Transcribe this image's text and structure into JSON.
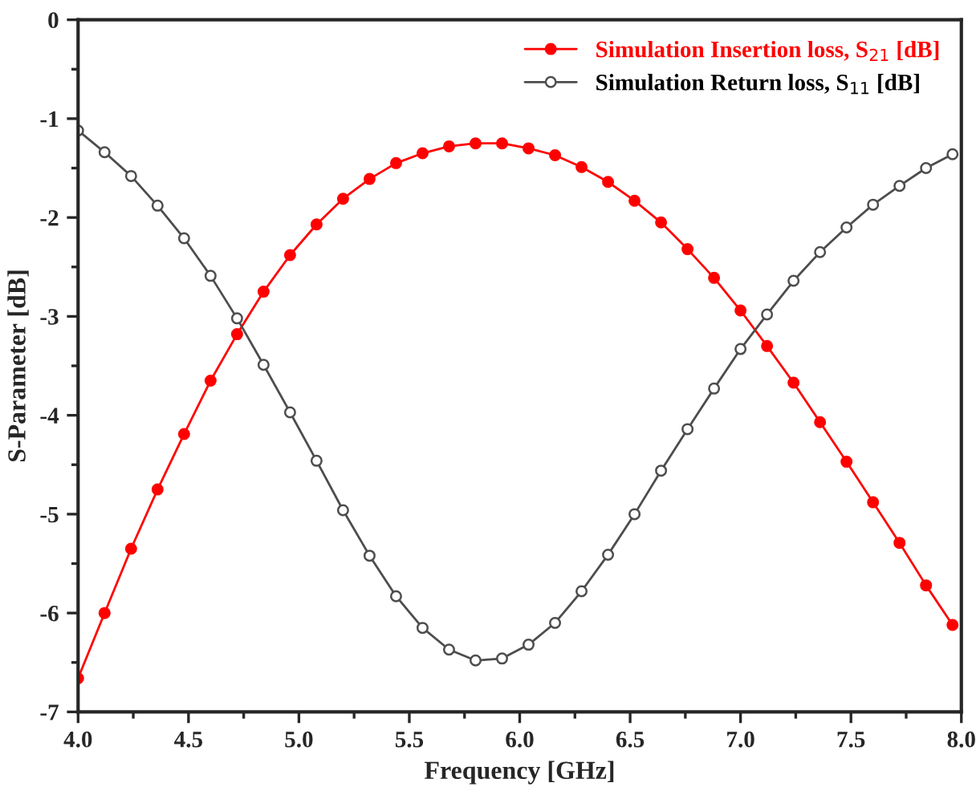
{
  "chart_data": {
    "type": "line",
    "xlabel": "Frequency [GHz]",
    "ylabel": "S-Parameter [dB]",
    "x": [
      4.0,
      4.12,
      4.24,
      4.36,
      4.48,
      4.6,
      4.72,
      4.84,
      4.96,
      5.08,
      5.2,
      5.32,
      5.44,
      5.56,
      5.68,
      5.8,
      5.92,
      6.04,
      6.16,
      6.28,
      6.4,
      6.52,
      6.64,
      6.76,
      6.88,
      7.0,
      7.12,
      7.24,
      7.36,
      7.48,
      7.6,
      7.72,
      7.84,
      7.96
    ],
    "series": [
      {
        "name": "Simulation Insertion loss, S$_{21}$ [dB]",
        "color": "#ff0000",
        "values": [
          -6.66,
          -6.0,
          -5.35,
          -4.75,
          -4.19,
          -3.65,
          -3.18,
          -2.75,
          -2.38,
          -2.07,
          -1.81,
          -1.61,
          -1.45,
          -1.35,
          -1.28,
          -1.25,
          -1.25,
          -1.3,
          -1.37,
          -1.49,
          -1.64,
          -1.83,
          -2.05,
          -2.32,
          -2.61,
          -2.94,
          -3.3,
          -3.67,
          -4.07,
          -4.47,
          -4.88,
          -5.29,
          -5.72,
          -6.12
        ]
      },
      {
        "name": "Simulation Return loss, S$_{11}$ [dB]",
        "color": "#4d4d4d",
        "values": [
          -1.12,
          -1.34,
          -1.58,
          -1.88,
          -2.21,
          -2.59,
          -3.02,
          -3.49,
          -3.97,
          -4.46,
          -4.96,
          -5.42,
          -5.83,
          -6.15,
          -6.37,
          -6.48,
          -6.46,
          -6.32,
          -6.1,
          -5.78,
          -5.41,
          -5.0,
          -4.56,
          -4.14,
          -3.73,
          -3.33,
          -2.98,
          -2.64,
          -2.35,
          -2.1,
          -1.87,
          -1.68,
          -1.5,
          -1.36
        ]
      }
    ],
    "xlim": [
      4,
      8
    ],
    "ylim": [
      -7,
      0
    ],
    "xticks": [
      {
        "value": 4,
        "label": "4.0"
      },
      {
        "value": 4.5,
        "label": "4.5"
      },
      {
        "value": 5,
        "label": "5.0"
      },
      {
        "value": 5.5,
        "label": "5.5"
      },
      {
        "value": 6,
        "label": "6.0"
      },
      {
        "value": 6.5,
        "label": "6.5"
      },
      {
        "value": 7,
        "label": "7.0"
      },
      {
        "value": 7.5,
        "label": "7.5"
      },
      {
        "value": 8,
        "label": "8.0"
      }
    ],
    "yticks": [
      -7,
      -6,
      -5,
      -4,
      -3,
      -2,
      -1,
      0
    ],
    "legend": "top right",
    "marker": "circle",
    "line_style": "solid",
    "grid": false
  }
}
